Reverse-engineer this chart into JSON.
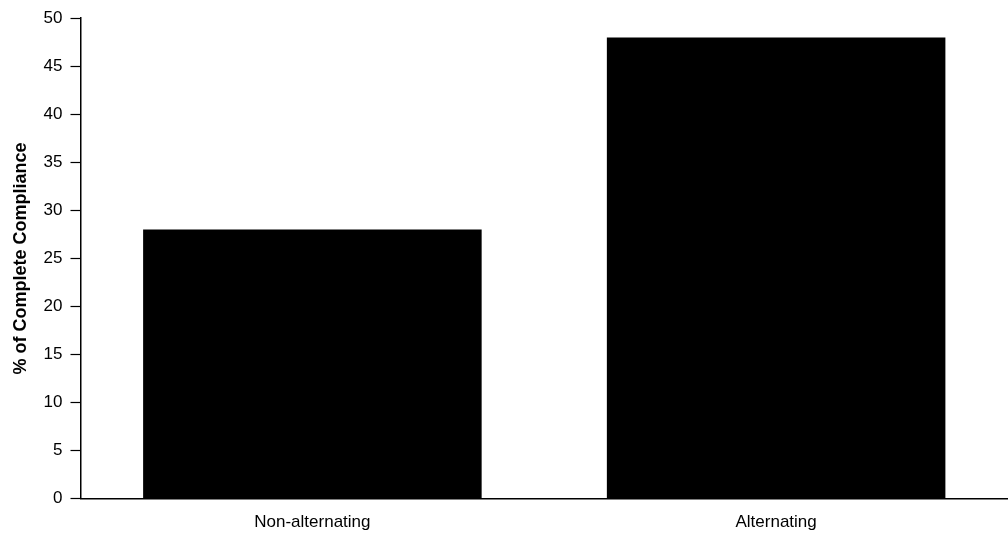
{
  "chart_data": {
    "type": "bar",
    "ylabel": "% of Complete Compliance",
    "categories": [
      "Non-alternating",
      "Alternating"
    ],
    "values": [
      28,
      48
    ],
    "color": "#000000",
    "ylim": [
      0,
      50
    ],
    "yticks": [
      0,
      5,
      10,
      15,
      20,
      25,
      30,
      35,
      40,
      45,
      50
    ],
    "grid": false,
    "legend": false
  }
}
